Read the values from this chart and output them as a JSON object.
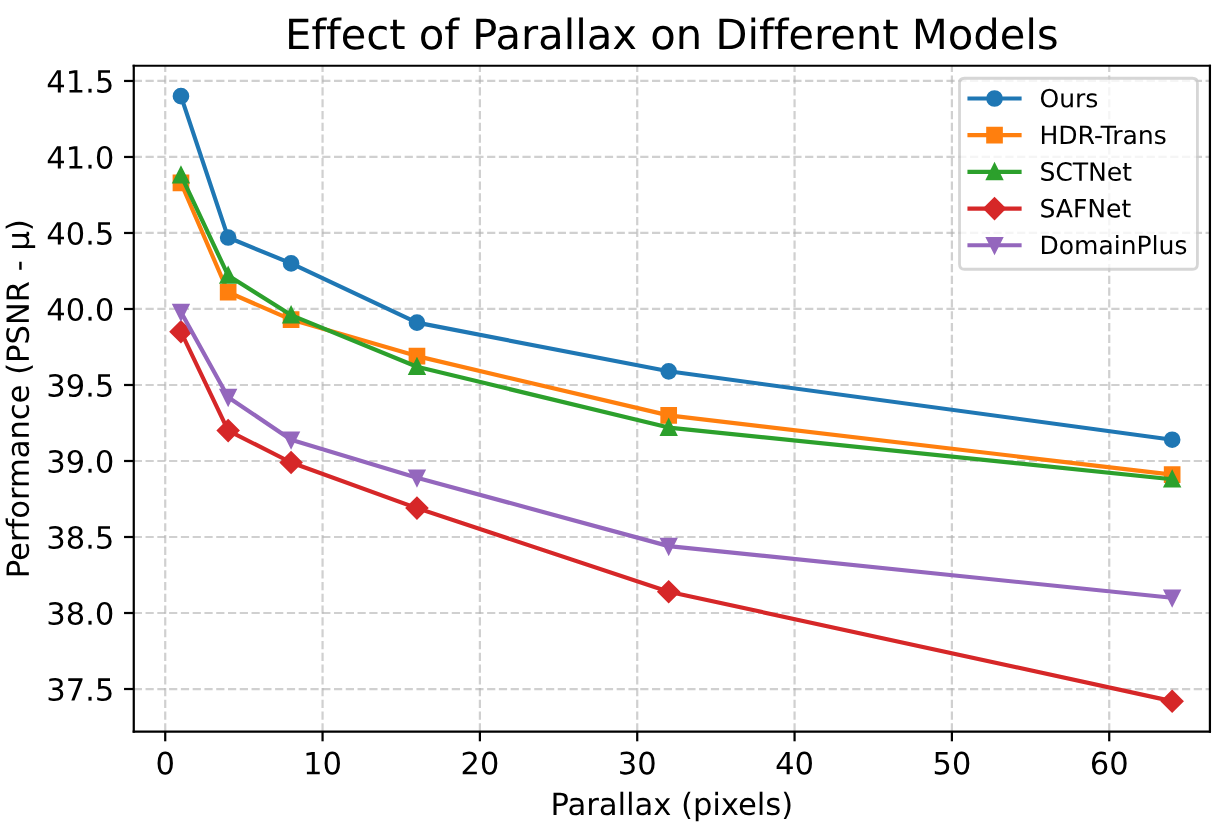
{
  "chart_data": {
    "type": "line",
    "title": "Effect of Parallax on Different Models",
    "xlabel": "Parallax (pixels)",
    "ylabel": "Performance (PSNR - μ)",
    "x": [
      1,
      4,
      8,
      16,
      32,
      64
    ],
    "series": [
      {
        "name": "Ours",
        "color": "#1f77b4",
        "marker": "circle",
        "values": [
          41.4,
          40.47,
          40.3,
          39.91,
          39.59,
          39.14
        ]
      },
      {
        "name": "HDR-Trans",
        "color": "#ff7f0e",
        "marker": "square",
        "values": [
          40.83,
          40.11,
          39.93,
          39.69,
          39.3,
          38.91
        ]
      },
      {
        "name": "SCTNet",
        "color": "#2ca02c",
        "marker": "triangle",
        "values": [
          40.88,
          40.22,
          39.96,
          39.62,
          39.22,
          38.88
        ]
      },
      {
        "name": "SAFNet",
        "color": "#d62728",
        "marker": "diamond",
        "values": [
          39.85,
          39.2,
          38.99,
          38.69,
          38.14,
          37.42
        ]
      },
      {
        "name": "DomainPlus",
        "color": "#9467bd",
        "marker": "triangle_down",
        "values": [
          39.98,
          39.42,
          39.14,
          38.89,
          38.44,
          38.1
        ]
      }
    ],
    "xlim": [
      -2,
      66.4
    ],
    "ylim": [
      37.22,
      41.6
    ],
    "xticks": [
      0,
      10,
      20,
      30,
      40,
      50,
      60
    ],
    "yticks": [
      {
        "value": 37.5,
        "label": "37.5"
      },
      {
        "value": 38.0,
        "label": "38.0"
      },
      {
        "value": 38.5,
        "label": "38.5"
      },
      {
        "value": 39.0,
        "label": "39.0"
      },
      {
        "value": 39.5,
        "label": "39.5"
      },
      {
        "value": 40.0,
        "label": "40.0"
      },
      {
        "value": 40.5,
        "label": "40.5"
      },
      {
        "value": 41.0,
        "label": "41.0"
      },
      {
        "value": 41.5,
        "label": "41.5"
      }
    ],
    "grid": true,
    "line_style": "solid",
    "legend": "top right"
  }
}
